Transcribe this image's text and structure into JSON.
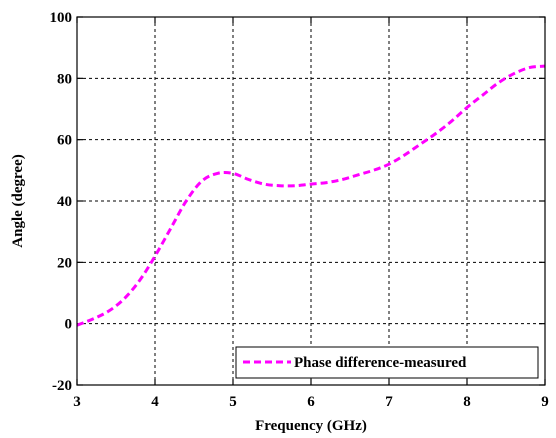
{
  "chart_data": {
    "type": "line",
    "xlabel": "Frequency (GHz)",
    "ylabel": "Angle (degree)",
    "xlim": [
      3,
      9
    ],
    "ylim": [
      -20,
      100
    ],
    "xticks": [
      "3",
      "4",
      "5",
      "6",
      "7",
      "8",
      "9"
    ],
    "yticks": [
      "-20",
      "0",
      "20",
      "40",
      "60",
      "80",
      "100"
    ],
    "grid": true,
    "legend_position": "bottom-right",
    "series": [
      {
        "name": "Phase difference-measured",
        "color": "#ff00ff",
        "line_style": "dashed",
        "x": [
          3.0,
          3.2,
          3.4,
          3.6,
          3.8,
          4.0,
          4.2,
          4.4,
          4.6,
          4.8,
          5.0,
          5.2,
          5.4,
          5.6,
          5.8,
          6.0,
          6.2,
          6.4,
          6.6,
          6.8,
          7.0,
          7.2,
          7.4,
          7.6,
          7.8,
          8.0,
          8.2,
          8.4,
          8.6,
          8.8,
          9.0
        ],
        "y": [
          -0.5,
          1.5,
          4,
          8,
          14,
          22,
          31,
          40,
          46.5,
          49,
          49,
          47,
          45.5,
          45,
          45,
          45.5,
          46,
          47,
          48.5,
          50,
          52,
          55,
          58.5,
          62,
          66,
          70.5,
          74.5,
          78.5,
          81.5,
          83.5,
          84
        ]
      }
    ]
  }
}
